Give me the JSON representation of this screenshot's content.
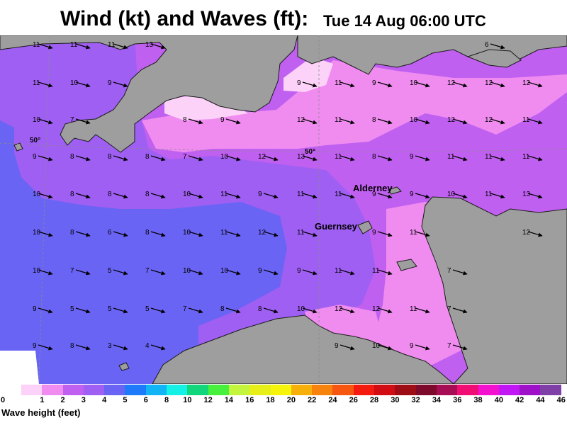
{
  "title": "Wind (kt) and Waves (ft):",
  "subtitle": "Tue 14 Aug 06:00 UTC",
  "places": [
    {
      "name": "Alderney",
      "x": 498,
      "y": 220
    },
    {
      "name": "Guernsey",
      "x": 444,
      "y": 274
    }
  ],
  "latitude_labels": [
    {
      "text": "50°",
      "x": 42,
      "y": 151
    },
    {
      "text": "50°",
      "x": 430,
      "y": 167
    }
  ],
  "wind_rows_y": [
    12,
    66,
    118,
    170,
    223,
    277,
    331,
    385,
    437
  ],
  "wind_cols_x": [
    52,
    105,
    158,
    211,
    264,
    317,
    370,
    425,
    478,
    531,
    584,
    637,
    690,
    743
  ],
  "wind_speeds": [
    [
      11,
      11,
      11,
      13,
      null,
      null,
      null,
      null,
      null,
      null,
      null,
      null,
      6,
      null
    ],
    [
      11,
      10,
      9,
      null,
      null,
      null,
      null,
      9,
      11,
      9,
      10,
      12,
      12,
      12
    ],
    [
      10,
      7,
      null,
      null,
      8,
      9,
      null,
      12,
      11,
      8,
      10,
      12,
      12,
      11
    ],
    [
      9,
      8,
      8,
      8,
      7,
      10,
      12,
      13,
      11,
      8,
      9,
      11,
      11,
      11
    ],
    [
      10,
      8,
      8,
      8,
      10,
      11,
      9,
      11,
      11,
      9,
      9,
      10,
      11,
      13
    ],
    [
      10,
      8,
      6,
      8,
      10,
      11,
      12,
      11,
      null,
      9,
      11,
      null,
      null,
      12
    ],
    [
      10,
      7,
      5,
      7,
      10,
      10,
      9,
      9,
      11,
      11,
      null,
      7,
      null,
      null
    ],
    [
      9,
      5,
      5,
      5,
      7,
      8,
      8,
      10,
      12,
      12,
      11,
      7,
      null,
      null
    ],
    [
      9,
      8,
      3,
      4,
      null,
      null,
      null,
      null,
      9,
      10,
      9,
      7,
      null,
      null
    ]
  ],
  "legend": {
    "label": "Wave height (feet)",
    "ticks": [
      "0",
      "1",
      "2",
      "3",
      "4",
      "5",
      "6",
      "8",
      "10",
      "12",
      "14",
      "16",
      "18",
      "20",
      "22",
      "24",
      "26",
      "28",
      "30",
      "32",
      "34",
      "36",
      "38",
      "40",
      "42",
      "44",
      "46"
    ],
    "colors": [
      "#fcd2f8",
      "#f08cf0",
      "#c060f0",
      "#9f5ff2",
      "#6a64f5",
      "#1d7bfb",
      "#11b4f5",
      "#13f0e5",
      "#12d67c",
      "#47f03d",
      "#c3f53e",
      "#e6ef18",
      "#f6f40b",
      "#f7b00a",
      "#f7820c",
      "#f6560f",
      "#f51a10",
      "#d10c12",
      "#9e0c16",
      "#7d0a2a",
      "#a70d55",
      "#f00d74",
      "#f311cf",
      "#c117f5",
      "#9e11c9",
      "#7f3fa7"
    ]
  },
  "colors": {
    "land": "#9e9e9e",
    "sea_deep": "#6a64f5",
    "sea_mid": "#9f5ff2",
    "sea_violet": "#c060f0",
    "sea_pink": "#f08cf0",
    "sea_pale": "#fcd2f8"
  }
}
